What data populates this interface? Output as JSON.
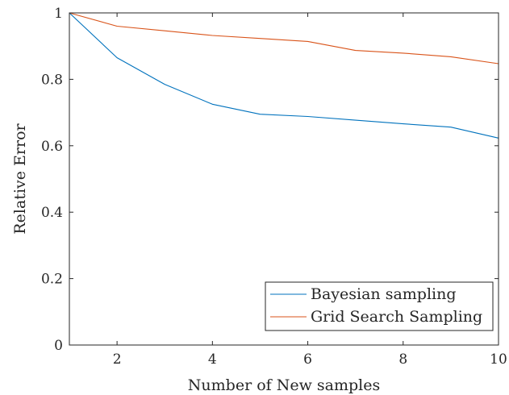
{
  "chart_data": {
    "type": "line",
    "xlabel": "Number of New samples",
    "ylabel": "Relative Error",
    "xlim": [
      1,
      10
    ],
    "ylim": [
      0,
      1
    ],
    "x_ticks": [
      2,
      4,
      6,
      8,
      10
    ],
    "y_ticks": [
      0,
      0.2,
      0.4,
      0.6,
      0.8,
      1
    ],
    "x_tick_labels": [
      "2",
      "4",
      "6",
      "8",
      "10"
    ],
    "y_tick_labels": [
      "0",
      "0.2",
      "0.4",
      "0.6",
      "0.8",
      "1"
    ],
    "grid": false,
    "legend_position": "bottom-right",
    "x": [
      1,
      2,
      3,
      4,
      5,
      6,
      7,
      8,
      9,
      10
    ],
    "series": [
      {
        "name": "Bayesian sampling",
        "color": "#0072BD",
        "values": [
          1.0,
          0.865,
          0.785,
          0.725,
          0.695,
          0.688,
          0.677,
          0.666,
          0.656,
          0.623
        ]
      },
      {
        "name": "Grid Search Sampling",
        "color": "#D95319",
        "values": [
          1.0,
          0.96,
          0.946,
          0.932,
          0.923,
          0.914,
          0.887,
          0.879,
          0.868,
          0.847
        ]
      }
    ]
  }
}
